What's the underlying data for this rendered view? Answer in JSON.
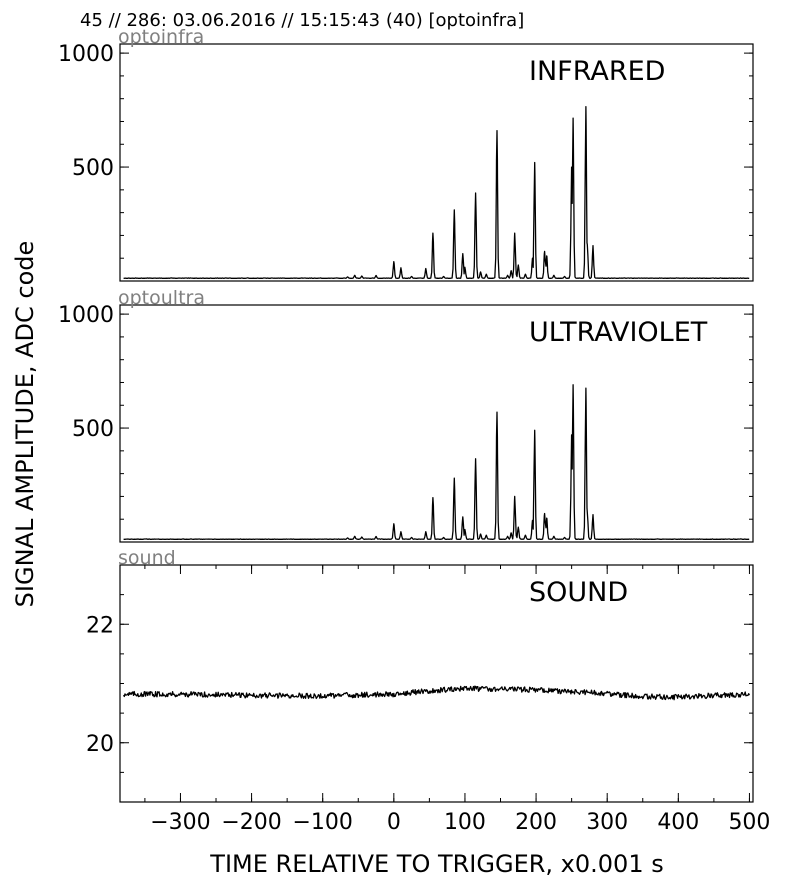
{
  "header": "45 // 286:   03.06.2016 // 15:15:43 (40)  [optoinfra]",
  "ylabel": "SIGNAL AMPLITUDE,  ADC code",
  "xlabel": "TIME RELATIVE TO TRIGGER,   x0.001 s",
  "chart_data": [
    {
      "type": "line",
      "sensor": "optoinfra",
      "title": "INFRARED",
      "xlim": [
        -385,
        505
      ],
      "ylim": [
        0,
        1040
      ],
      "yticks": [
        1000,
        500
      ],
      "xticks": [],
      "baseline": 12,
      "peaks": [
        {
          "x": -65,
          "y": 18
        },
        {
          "x": -55,
          "y": 25
        },
        {
          "x": -45,
          "y": 22
        },
        {
          "x": -25,
          "y": 24
        },
        {
          "x": 0,
          "y": 85
        },
        {
          "x": 10,
          "y": 58
        },
        {
          "x": 25,
          "y": 20
        },
        {
          "x": 45,
          "y": 55
        },
        {
          "x": 55,
          "y": 210
        },
        {
          "x": 70,
          "y": 20
        },
        {
          "x": 85,
          "y": 312
        },
        {
          "x": 97,
          "y": 120
        },
        {
          "x": 100,
          "y": 60
        },
        {
          "x": 115,
          "y": 386
        },
        {
          "x": 122,
          "y": 40
        },
        {
          "x": 130,
          "y": 30
        },
        {
          "x": 145,
          "y": 660
        },
        {
          "x": 160,
          "y": 25
        },
        {
          "x": 165,
          "y": 45
        },
        {
          "x": 170,
          "y": 210
        },
        {
          "x": 175,
          "y": 70
        },
        {
          "x": 185,
          "y": 30
        },
        {
          "x": 195,
          "y": 100
        },
        {
          "x": 198,
          "y": 520
        },
        {
          "x": 212,
          "y": 130
        },
        {
          "x": 215,
          "y": 110
        },
        {
          "x": 225,
          "y": 25
        },
        {
          "x": 240,
          "y": 20
        },
        {
          "x": 250,
          "y": 500
        },
        {
          "x": 252,
          "y": 715
        },
        {
          "x": 270,
          "y": 765
        },
        {
          "x": 272,
          "y": 160
        },
        {
          "x": 280,
          "y": 155
        }
      ]
    },
    {
      "type": "line",
      "sensor": "optoultra",
      "title": "ULTRAVIOLET",
      "xlim": [
        -385,
        505
      ],
      "ylim": [
        0,
        1040
      ],
      "yticks": [
        1000,
        500
      ],
      "xticks": [],
      "baseline": 12,
      "peaks": [
        {
          "x": -65,
          "y": 18
        },
        {
          "x": -55,
          "y": 25
        },
        {
          "x": -45,
          "y": 22
        },
        {
          "x": -25,
          "y": 24
        },
        {
          "x": 0,
          "y": 80
        },
        {
          "x": 10,
          "y": 45
        },
        {
          "x": 25,
          "y": 20
        },
        {
          "x": 45,
          "y": 45
        },
        {
          "x": 55,
          "y": 195
        },
        {
          "x": 70,
          "y": 20
        },
        {
          "x": 85,
          "y": 280
        },
        {
          "x": 97,
          "y": 110
        },
        {
          "x": 100,
          "y": 55
        },
        {
          "x": 115,
          "y": 365
        },
        {
          "x": 122,
          "y": 35
        },
        {
          "x": 130,
          "y": 30
        },
        {
          "x": 145,
          "y": 570
        },
        {
          "x": 160,
          "y": 25
        },
        {
          "x": 165,
          "y": 40
        },
        {
          "x": 170,
          "y": 200
        },
        {
          "x": 175,
          "y": 65
        },
        {
          "x": 185,
          "y": 30
        },
        {
          "x": 195,
          "y": 95
        },
        {
          "x": 198,
          "y": 490
        },
        {
          "x": 212,
          "y": 125
        },
        {
          "x": 215,
          "y": 105
        },
        {
          "x": 225,
          "y": 25
        },
        {
          "x": 240,
          "y": 20
        },
        {
          "x": 250,
          "y": 470
        },
        {
          "x": 252,
          "y": 690
        },
        {
          "x": 270,
          "y": 675
        },
        {
          "x": 272,
          "y": 130
        },
        {
          "x": 280,
          "y": 120
        }
      ]
    },
    {
      "type": "line",
      "sensor": "sound",
      "title": "SOUND",
      "xlim": [
        -385,
        505
      ],
      "ylim": [
        19,
        23
      ],
      "yticks": [
        22,
        20
      ],
      "xticks": [
        -300,
        -200,
        -100,
        0,
        100,
        200,
        300,
        400,
        500
      ],
      "xtick_labels": [
        "−300",
        "−200",
        "−100",
        "0",
        "100",
        "200",
        "300",
        "400",
        "500"
      ],
      "points": [
        {
          "x": -380,
          "y": 20.82
        },
        {
          "x": -300,
          "y": 20.82
        },
        {
          "x": -200,
          "y": 20.8
        },
        {
          "x": -100,
          "y": 20.79
        },
        {
          "x": 0,
          "y": 20.82
        },
        {
          "x": 50,
          "y": 20.88
        },
        {
          "x": 100,
          "y": 20.91
        },
        {
          "x": 150,
          "y": 20.91
        },
        {
          "x": 200,
          "y": 20.89
        },
        {
          "x": 250,
          "y": 20.86
        },
        {
          "x": 300,
          "y": 20.83
        },
        {
          "x": 350,
          "y": 20.78
        },
        {
          "x": 400,
          "y": 20.77
        },
        {
          "x": 450,
          "y": 20.8
        },
        {
          "x": 500,
          "y": 20.82
        }
      ]
    }
  ]
}
